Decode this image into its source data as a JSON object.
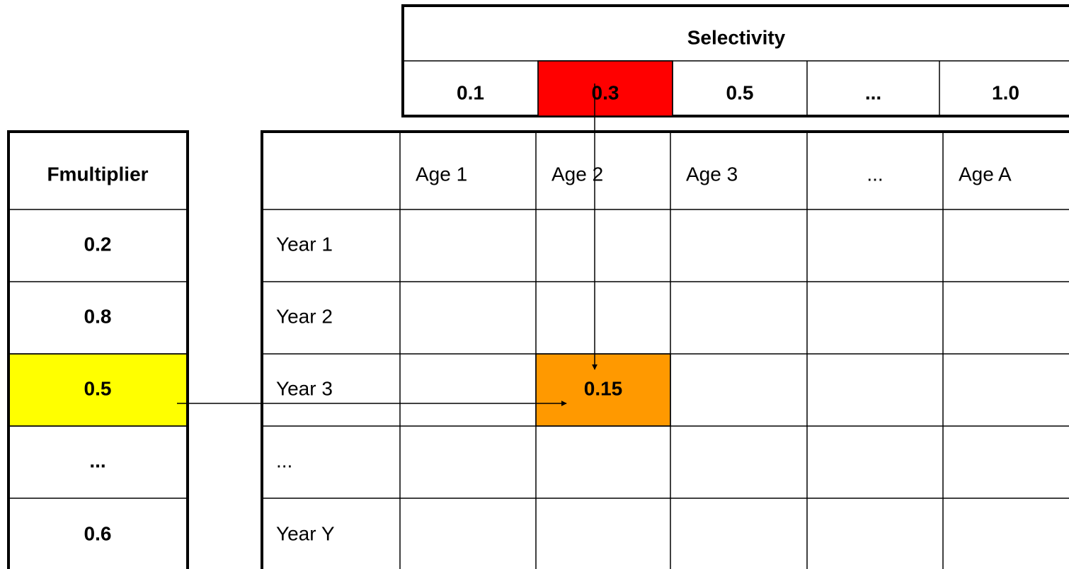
{
  "selectivity": {
    "title": "Selectivity",
    "values": [
      "0.1",
      "0.3",
      "0.5",
      "...",
      "1.0"
    ]
  },
  "fmultiplier": {
    "title": "Fmultiplier",
    "values": [
      "0.2",
      "0.8",
      "0.5",
      "...",
      "0.6"
    ]
  },
  "grid": {
    "columns": [
      "Age 1",
      "Age 2",
      "Age 3",
      "...",
      "Age A"
    ],
    "rows": [
      "Year 1",
      "Year 2",
      "Year 3",
      "...",
      "Year Y"
    ],
    "result": "0.15"
  }
}
